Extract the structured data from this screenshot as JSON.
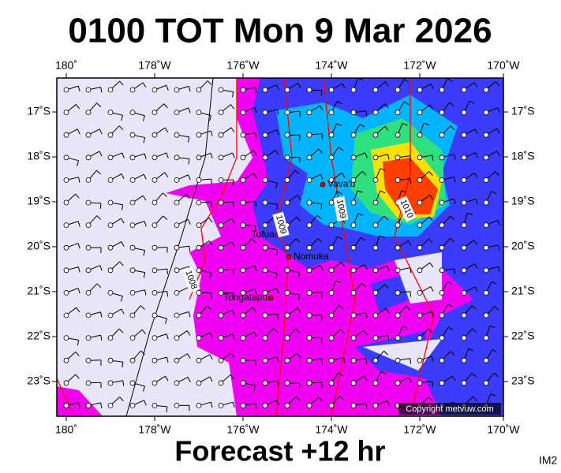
{
  "header": {
    "title": "0100 TOT Mon 9 Mar 2026"
  },
  "axes": {
    "top_labels": [
      "180˚",
      "178˚W",
      "176˚W",
      "174˚W",
      "172˚W",
      "170˚W"
    ],
    "bottom_labels": [
      "180˚",
      "178˚W",
      "176˚W",
      "174˚W",
      "172˚W",
      "170˚W"
    ],
    "left_labels": [
      "17˚S",
      "18˚S",
      "19˚S",
      "20˚S",
      "21˚S",
      "22˚S",
      "23˚S"
    ],
    "right_labels": [
      "17˚S",
      "18˚S",
      "19˚S",
      "20˚S",
      "21˚S",
      "22˚S",
      "23˚S"
    ]
  },
  "places": [
    "Vava'u",
    "Tofua",
    "Nomuka",
    "Tongatapu"
  ],
  "isobars": [
    "1009",
    "1009",
    "1010",
    "1008"
  ],
  "copyright": "Copyright metvuw.com",
  "footer": {
    "caption": "Forecast +12 hr",
    "id": "IM2"
  }
}
